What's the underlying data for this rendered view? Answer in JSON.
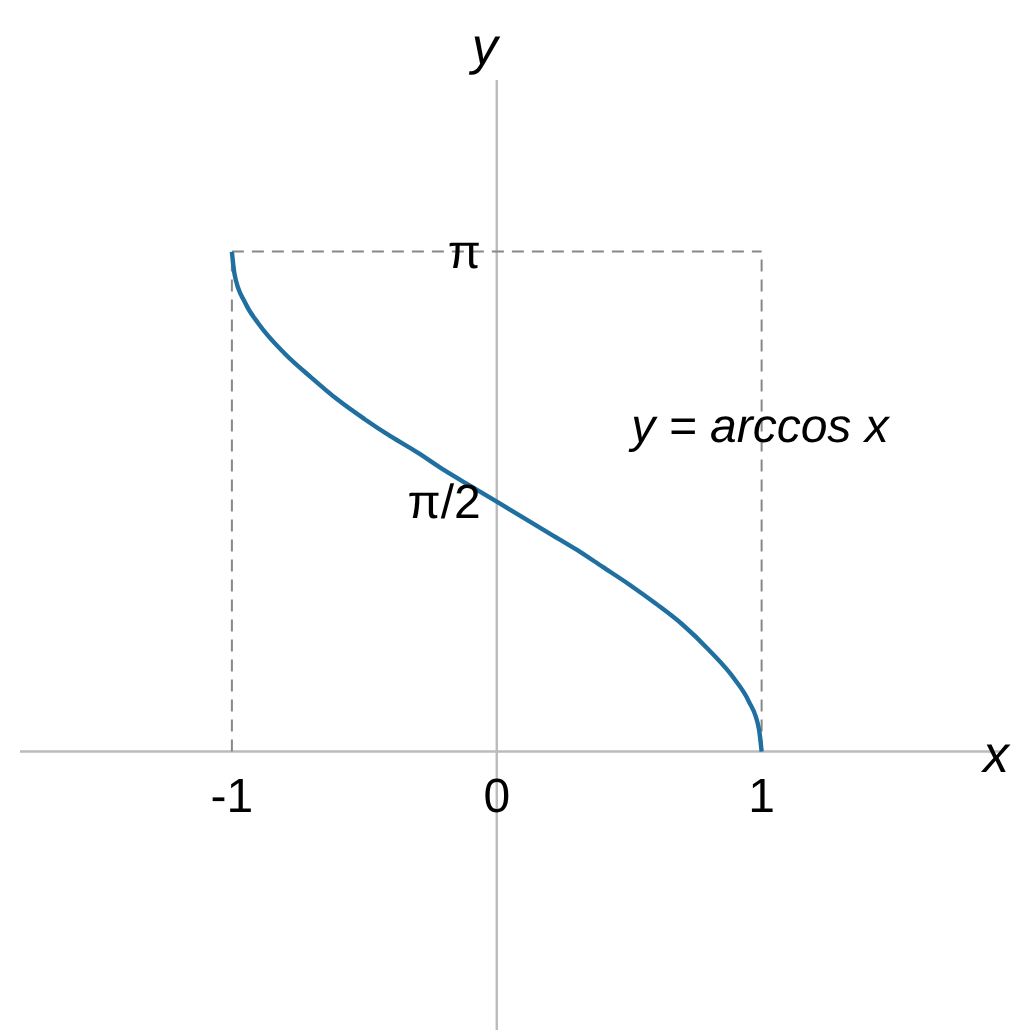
{
  "chart_data": {
    "type": "line",
    "xlabel": "x",
    "ylabel": "y",
    "xlim": [
      -1.8,
      1.9
    ],
    "ylim": [
      -1.75,
      4.22
    ],
    "xticks": [
      -1,
      0,
      1
    ],
    "yticks": [
      {
        "value": 3.1416,
        "label": "π"
      },
      {
        "value": 1.5708,
        "label": "π/2"
      }
    ],
    "x": [
      -1,
      -0.99,
      -0.95,
      -0.9,
      -0.8,
      -0.7,
      -0.6,
      -0.5,
      -0.4,
      -0.3,
      -0.2,
      -0.1,
      0,
      0.1,
      0.2,
      0.3,
      0.4,
      0.5,
      0.6,
      0.7,
      0.8,
      0.9,
      0.95,
      0.99,
      1
    ],
    "series": [
      {
        "color": "#1f6fa0",
        "values": [
          3.14,
          3.0,
          2.82,
          2.69,
          2.5,
          2.35,
          2.21,
          2.09,
          1.98,
          1.88,
          1.77,
          1.67,
          1.57,
          1.47,
          1.37,
          1.27,
          1.16,
          1.05,
          0.93,
          0.8,
          0.64,
          0.45,
          0.32,
          0.14,
          0
        ]
      }
    ],
    "ref_lines": [
      {
        "axis": "x",
        "value": -1,
        "line_style": "dashed",
        "color": "#888888"
      },
      {
        "axis": "x",
        "value": 1,
        "line_style": "dashed",
        "color": "#888888"
      },
      {
        "axis": "y",
        "value": 3.1416,
        "line_style": "dashed",
        "color": "#888888"
      }
    ],
    "annotations": [
      "y = arccos x"
    ],
    "grid": false,
    "marker": "none",
    "line_style": "solid"
  }
}
